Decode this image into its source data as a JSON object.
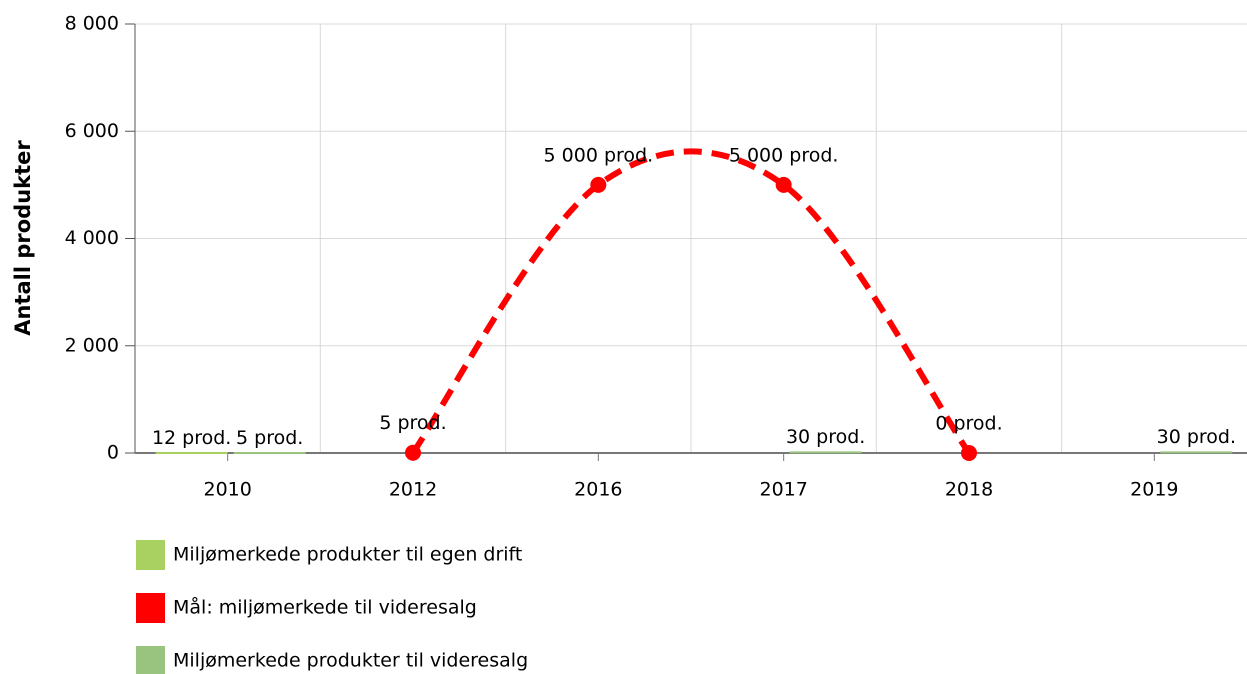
{
  "chart_data": {
    "type": "bar_line",
    "y_label": "Antall produkter",
    "categories": [
      "2010",
      "2012",
      "2016",
      "2017",
      "2018",
      "2019"
    ],
    "ylim": [
      0,
      8000
    ],
    "yticks": [
      0,
      {
        "value": 2000,
        "label": "2 000"
      },
      {
        "value": 4000,
        "label": "4 000"
      },
      {
        "value": 6000,
        "label": "6 000"
      },
      {
        "value": 8000,
        "label": "8 000"
      }
    ],
    "grid": true,
    "legend": "bottom",
    "series": [
      {
        "name": "Miljømerkede produkter til egen drift",
        "type": "bar",
        "color": "#a8d162",
        "slot": "left",
        "values": [
          12,
          null,
          null,
          null,
          null,
          null
        ],
        "value_labels": [
          "12 prod.",
          null,
          null,
          null,
          null,
          null
        ]
      },
      {
        "name": "Mål: miljømerkede til videresalg",
        "type": "line",
        "color": "#ff0000",
        "values": [
          null,
          5,
          5000,
          5000,
          0,
          null
        ],
        "value_labels": [
          null,
          "5 prod.",
          "5 000 prod.",
          "5 000 prod.",
          "0 prod.",
          null
        ]
      },
      {
        "name": "Miljømerkede produkter til videresalg",
        "type": "bar",
        "color": "#99c47f",
        "slot": "right",
        "values": [
          5,
          null,
          null,
          30,
          null,
          30
        ],
        "value_labels": [
          "5 prod.",
          null,
          null,
          "30 prod.",
          null,
          "30 prod."
        ]
      }
    ]
  }
}
